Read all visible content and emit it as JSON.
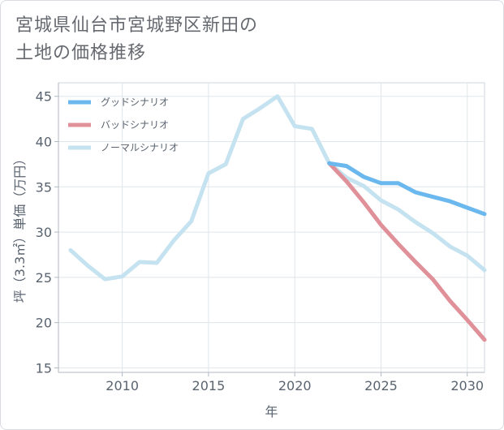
{
  "title_lines": [
    "宮城県仙台市宮城野区新田の",
    "土地の価格推移"
  ],
  "chart_data": {
    "type": "line",
    "title": "宮城県仙台市宮城野区新田の土地の価格推移",
    "xlabel": "年",
    "ylabel": "坪（3.3㎡）単価（万円）",
    "xlim": [
      2006.3,
      2031
    ],
    "ylim": [
      14.5,
      46.5
    ],
    "xticks": [
      2010,
      2015,
      2020,
      2025,
      2030
    ],
    "yticks": [
      15,
      20,
      25,
      30,
      35,
      40,
      45
    ],
    "grid": true,
    "legend_position": "top-left",
    "series": [
      {
        "name": "グッドシナリオ",
        "color": "#6bb8ee",
        "x": [
          2022,
          2023,
          2024,
          2025,
          2026,
          2027,
          2028,
          2029,
          2030,
          2031
        ],
        "y": [
          37.6,
          37.3,
          36.1,
          35.4,
          35.4,
          34.4,
          33.9,
          33.4,
          32.7,
          32.0
        ]
      },
      {
        "name": "バッドシナリオ",
        "color": "#e09098",
        "x": [
          2022,
          2023,
          2024,
          2025,
          2026,
          2027,
          2028,
          2029,
          2030,
          2031
        ],
        "y": [
          37.6,
          35.6,
          33.3,
          30.8,
          28.7,
          26.7,
          24.8,
          22.4,
          20.3,
          18.1
        ]
      },
      {
        "name": "ノーマルシナリオ",
        "color": "#c4e2f0",
        "x": [
          2007,
          2008,
          2009,
          2010,
          2011,
          2012,
          2013,
          2014,
          2015,
          2016,
          2017,
          2018,
          2019,
          2020,
          2021,
          2022,
          2023,
          2024,
          2025,
          2026,
          2027,
          2028,
          2029,
          2030,
          2031
        ],
        "y": [
          28.0,
          26.3,
          24.8,
          25.1,
          26.7,
          26.6,
          29.1,
          31.2,
          36.5,
          37.5,
          42.5,
          43.7,
          45.0,
          41.7,
          41.4,
          37.6,
          36.0,
          35.1,
          33.5,
          32.5,
          31.1,
          29.9,
          28.4,
          27.4,
          25.8
        ]
      }
    ]
  }
}
